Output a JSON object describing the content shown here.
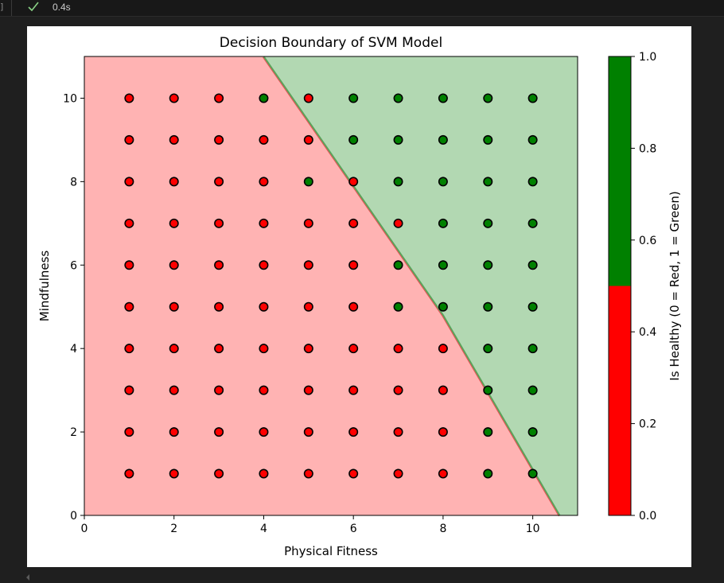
{
  "cell_output": {
    "bracket": "]",
    "status_icon": "checkmark-icon",
    "exec_time": "0.4s",
    "status_color": "#89d185"
  },
  "chart_data": {
    "type": "scatter",
    "title": "Decision Boundary of SVM Model",
    "xlabel": "Physical Fitness",
    "ylabel": "Mindfulness",
    "xlim": [
      0,
      11
    ],
    "ylim": [
      0,
      11
    ],
    "xticks": [
      "0",
      "2",
      "4",
      "6",
      "8",
      "10"
    ],
    "yticks": [
      "0",
      "2",
      "4",
      "6",
      "8",
      "10"
    ],
    "colorbar": {
      "label": "Is Healthy (0 = Red, 1 = Green)",
      "ticks": [
        "0.0",
        "0.2",
        "0.4",
        "0.6",
        "0.8",
        "1.0"
      ],
      "colors": [
        "#ff0000",
        "#008000"
      ]
    },
    "region_colors": {
      "unhealthy": "#ffb3b3",
      "healthy": "#b2d8b2"
    },
    "decision_boundary": [
      [
        4.0,
        11.0
      ],
      [
        6.0,
        7.9
      ],
      [
        8.0,
        4.8
      ],
      [
        10.6,
        0.0
      ]
    ],
    "grid": false,
    "points": {
      "x": [
        1,
        2,
        3,
        4,
        5,
        6,
        7,
        8,
        9,
        10
      ],
      "y": [
        10,
        9,
        8,
        7,
        6,
        5,
        4,
        3,
        2,
        1
      ],
      "labels": [
        [
          0,
          0,
          0,
          1,
          0,
          1,
          1,
          1,
          1,
          1
        ],
        [
          0,
          0,
          0,
          0,
          0,
          1,
          1,
          1,
          1,
          1
        ],
        [
          0,
          0,
          0,
          0,
          1,
          0,
          1,
          1,
          1,
          1
        ],
        [
          0,
          0,
          0,
          0,
          0,
          0,
          0,
          1,
          1,
          1
        ],
        [
          0,
          0,
          0,
          0,
          0,
          0,
          1,
          1,
          1,
          1
        ],
        [
          0,
          0,
          0,
          0,
          0,
          0,
          1,
          1,
          1,
          1
        ],
        [
          0,
          0,
          0,
          0,
          0,
          0,
          0,
          0,
          1,
          1
        ],
        [
          0,
          0,
          0,
          0,
          0,
          0,
          0,
          0,
          1,
          1
        ],
        [
          0,
          0,
          0,
          0,
          0,
          0,
          0,
          0,
          1,
          1
        ],
        [
          0,
          0,
          0,
          0,
          0,
          0,
          0,
          0,
          1,
          1
        ]
      ]
    }
  }
}
